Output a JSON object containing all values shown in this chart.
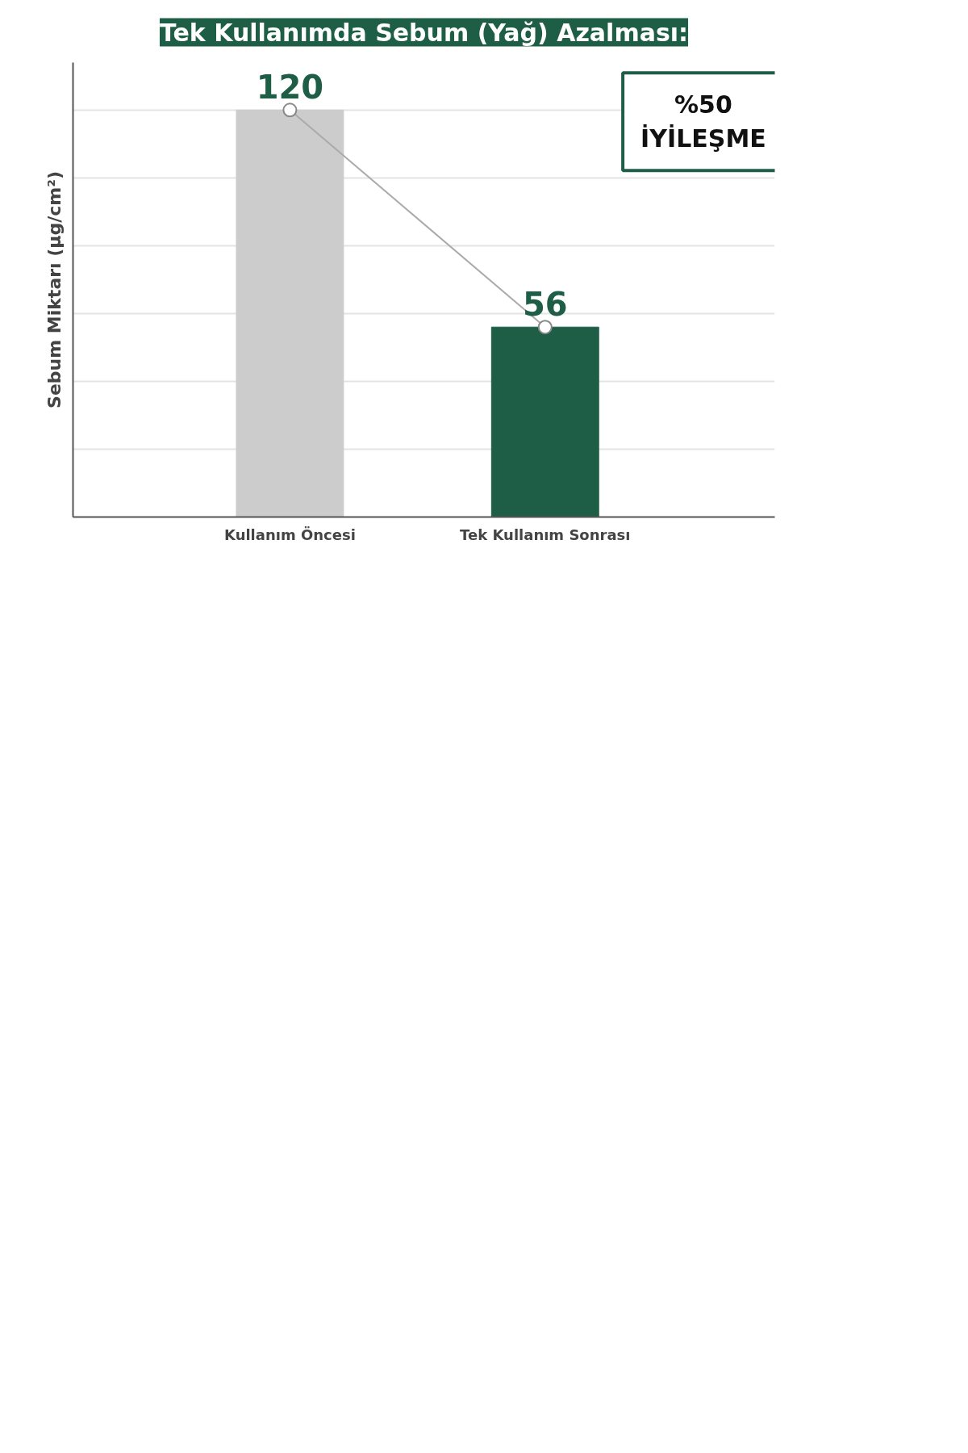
{
  "chart_data": {
    "type": "bar",
    "title": "Tek Kullanımda Sebum (Yağ) Azalması:",
    "ylabel": "Sebum Miktarı (µg/cm²)",
    "categories": [
      "Kullanım Öncesi",
      "Tek Kullanım Sonrası"
    ],
    "series": [
      {
        "colors": [
          "#cccccc",
          "#1e5e46"
        ],
        "values": [
          120,
          56
        ],
        "value_labels": [
          "120",
          "56"
        ]
      },
      {
        "type": "line",
        "color": "#aaaaaa",
        "values": [
          120,
          56
        ],
        "marker": "circle"
      }
    ],
    "ylim": [
      0,
      134
    ],
    "yticks": [
      {
        "value": 20,
        "label": null
      },
      {
        "value": 40,
        "label": null
      },
      {
        "value": 60,
        "label": null
      },
      {
        "value": 80,
        "label": null
      },
      {
        "value": 100,
        "label": null
      },
      {
        "value": 120,
        "label": null
      }
    ],
    "tick_labels": "x",
    "grid": "y",
    "annotations": [
      "%50 İYİLEŞME"
    ]
  }
}
